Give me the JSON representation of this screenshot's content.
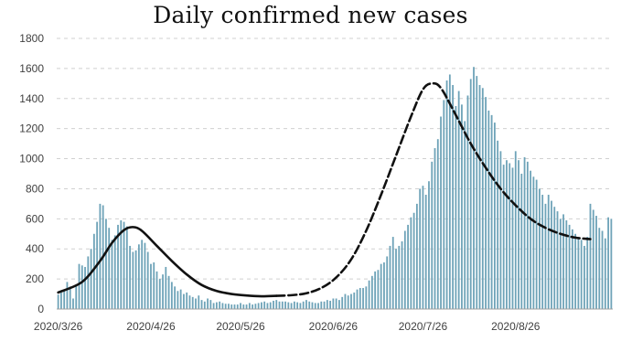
{
  "chart_data": {
    "type": "bar",
    "title": "Daily confirmed new cases",
    "xlabel": "",
    "ylabel": "",
    "ylim": [
      0,
      1800
    ],
    "yticks": [
      0,
      200,
      400,
      600,
      800,
      1000,
      1200,
      1400,
      1600,
      1800
    ],
    "x_start": "2020/3/26",
    "x_end": "2020/9/20",
    "xtick_labels": [
      "2020/3/26",
      "2020/4/26",
      "2020/5/26",
      "2020/6/26",
      "2020/7/26",
      "2020/8/26"
    ],
    "grid": "horizontal dashed",
    "series": [
      {
        "kind": "bar",
        "color": "#6ea3b8",
        "values": [
          96,
          110,
          130,
          180,
          150,
          70,
          160,
          300,
          290,
          280,
          350,
          400,
          500,
          580,
          700,
          690,
          600,
          540,
          460,
          490,
          560,
          590,
          580,
          550,
          420,
          380,
          390,
          430,
          460,
          440,
          380,
          300,
          310,
          250,
          200,
          230,
          280,
          220,
          180,
          150,
          120,
          130,
          100,
          110,
          90,
          80,
          70,
          90,
          60,
          50,
          70,
          60,
          40,
          45,
          50,
          40,
          35,
          35,
          30,
          30,
          30,
          40,
          30,
          30,
          40,
          30,
          35,
          40,
          45,
          50,
          40,
          45,
          55,
          60,
          50,
          50,
          50,
          45,
          40,
          50,
          45,
          40,
          50,
          60,
          50,
          45,
          40,
          40,
          50,
          50,
          60,
          55,
          70,
          70,
          60,
          80,
          100,
          90,
          100,
          110,
          130,
          140,
          140,
          150,
          190,
          220,
          250,
          260,
          300,
          310,
          350,
          420,
          480,
          400,
          420,
          450,
          520,
          560,
          610,
          640,
          700,
          800,
          820,
          760,
          850,
          980,
          1070,
          1130,
          1280,
          1390,
          1520,
          1560,
          1490,
          1350,
          1450,
          1360,
          1250,
          1420,
          1530,
          1610,
          1550,
          1490,
          1470,
          1410,
          1320,
          1290,
          1240,
          1120,
          1050,
          960,
          990,
          970,
          940,
          1050,
          990,
          900,
          1010,
          980,
          920,
          880,
          860,
          800,
          760,
          700,
          760,
          720,
          680,
          650,
          600,
          630,
          590,
          560,
          530,
          500,
          480,
          460,
          420,
          480,
          700,
          660,
          620,
          540,
          520,
          470,
          610,
          600
        ]
      },
      {
        "kind": "line",
        "style": "solid",
        "color": "#111111",
        "points": [
          [
            0,
            110
          ],
          [
            8,
            180
          ],
          [
            14,
            320
          ],
          [
            18,
            440
          ],
          [
            22,
            525
          ],
          [
            25,
            545
          ],
          [
            28,
            520
          ],
          [
            33,
            420
          ],
          [
            38,
            320
          ],
          [
            43,
            230
          ],
          [
            48,
            160
          ],
          [
            53,
            120
          ],
          [
            58,
            100
          ],
          [
            63,
            90
          ],
          [
            68,
            85
          ],
          [
            73,
            88
          ]
        ]
      },
      {
        "kind": "line",
        "style": "dashed",
        "color": "#111111",
        "points": [
          [
            73,
            88
          ],
          [
            78,
            92
          ],
          [
            83,
            105
          ],
          [
            88,
            140
          ],
          [
            93,
            210
          ],
          [
            98,
            330
          ],
          [
            103,
            520
          ],
          [
            108,
            760
          ],
          [
            113,
            1020
          ],
          [
            118,
            1280
          ],
          [
            122,
            1460
          ],
          [
            125,
            1500
          ],
          [
            128,
            1470
          ],
          [
            133,
            1290
          ],
          [
            138,
            1100
          ],
          [
            143,
            940
          ],
          [
            148,
            800
          ],
          [
            153,
            690
          ],
          [
            158,
            600
          ],
          [
            163,
            540
          ],
          [
            168,
            500
          ],
          [
            173,
            475
          ],
          [
            178,
            465
          ]
        ]
      }
    ]
  }
}
